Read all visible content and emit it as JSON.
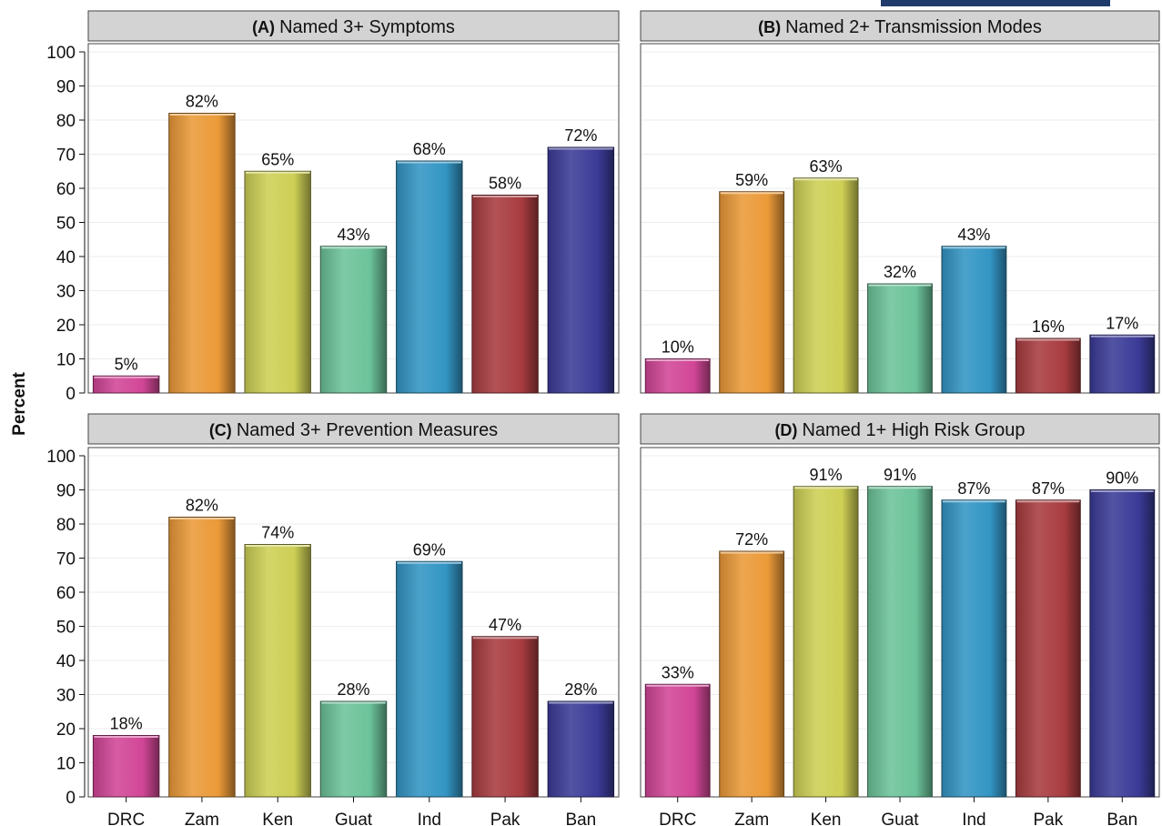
{
  "chart_data": {
    "type": "bar",
    "ylabel": "Percent",
    "ylim": [
      0,
      100
    ],
    "yticks": [
      0,
      10,
      20,
      30,
      40,
      50,
      60,
      70,
      80,
      90,
      100
    ],
    "grid": true,
    "categories": [
      "DRC",
      "Zam",
      "Ken",
      "Guat",
      "Ind",
      "Pak",
      "Ban"
    ],
    "colors": [
      "#d24697",
      "#eb9a38",
      "#cdcf55",
      "#6cc39a",
      "#3395c4",
      "#a83c40",
      "#3b3b98"
    ],
    "panels": [
      {
        "letter": "(A)",
        "title": "Named 3+ Symptoms",
        "values": [
          5,
          82,
          65,
          43,
          68,
          58,
          72
        ],
        "labels": [
          "5%",
          "82%",
          "65%",
          "43%",
          "68%",
          "58%",
          "72%"
        ]
      },
      {
        "letter": "(B)",
        "title": "Named 2+ Transmission Modes",
        "values": [
          10,
          59,
          63,
          32,
          43,
          16,
          17
        ],
        "labels": [
          "10%",
          "59%",
          "63%",
          "32%",
          "43%",
          "16%",
          "17%"
        ]
      },
      {
        "letter": "(C)",
        "title": "Named 3+ Prevention Measures",
        "values": [
          18,
          82,
          74,
          28,
          69,
          47,
          28
        ],
        "labels": [
          "18%",
          "82%",
          "74%",
          "28%",
          "69%",
          "47%",
          "28%"
        ]
      },
      {
        "letter": "(D)",
        "title": "Named 1+ High Risk Group",
        "values": [
          33,
          72,
          91,
          91,
          87,
          87,
          90
        ],
        "labels": [
          "33%",
          "72%",
          "91%",
          "91%",
          "87%",
          "87%",
          "90%"
        ]
      }
    ]
  }
}
